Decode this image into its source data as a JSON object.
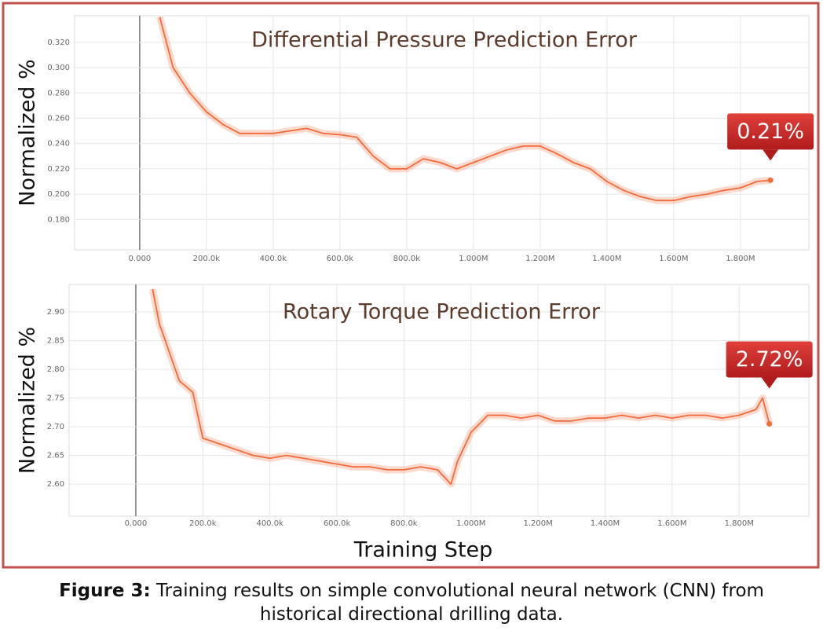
{
  "chart_data": [
    {
      "type": "line",
      "title": "Differential Pressure Prediction Error",
      "ylabel": "Normalized %",
      "x": [
        60000,
        80000,
        100000,
        150000,
        200000,
        250000,
        300000,
        350000,
        400000,
        450000,
        500000,
        550000,
        600000,
        650000,
        700000,
        750000,
        800000,
        850000,
        900000,
        950000,
        1000000,
        1050000,
        1100000,
        1150000,
        1200000,
        1250000,
        1300000,
        1350000,
        1400000,
        1450000,
        1500000,
        1550000,
        1600000,
        1650000,
        1700000,
        1750000,
        1800000,
        1850000,
        1890000
      ],
      "series": [
        {
          "name": "Differential Pressure",
          "color": "#f26b3a",
          "values": [
            0.34,
            0.32,
            0.3,
            0.28,
            0.265,
            0.255,
            0.248,
            0.248,
            0.248,
            0.25,
            0.252,
            0.248,
            0.247,
            0.245,
            0.23,
            0.22,
            0.22,
            0.228,
            0.225,
            0.22,
            0.225,
            0.23,
            0.235,
            0.238,
            0.238,
            0.232,
            0.225,
            0.22,
            0.21,
            0.203,
            0.198,
            0.195,
            0.195,
            0.198,
            0.2,
            0.203,
            0.205,
            0.21,
            0.211
          ]
        }
      ],
      "annotation": "0.21%",
      "xlim": [
        -195000,
        2005000
      ],
      "ylim": [
        0.156,
        0.341
      ],
      "xticks": [
        {
          "value": 0,
          "label": "0.000"
        },
        {
          "value": 200000,
          "label": "200.0k"
        },
        {
          "value": 400000,
          "label": "400.0k"
        },
        {
          "value": 600000,
          "label": "600.0k"
        },
        {
          "value": 800000,
          "label": "800.0k"
        },
        {
          "value": 1000000,
          "label": "1.000M"
        },
        {
          "value": 1200000,
          "label": "1.200M"
        },
        {
          "value": 1400000,
          "label": "1.400M"
        },
        {
          "value": 1600000,
          "label": "1.600M"
        },
        {
          "value": 1800000,
          "label": "1.800M"
        }
      ],
      "yticks": [
        {
          "value": 0.18,
          "label": "0.180"
        },
        {
          "value": 0.2,
          "label": "0.200"
        },
        {
          "value": 0.22,
          "label": "0.220"
        },
        {
          "value": 0.24,
          "label": "0.240"
        },
        {
          "value": 0.26,
          "label": "0.260"
        },
        {
          "value": 0.28,
          "label": "0.280"
        },
        {
          "value": 0.3,
          "label": "0.300"
        },
        {
          "value": 0.32,
          "label": "0.320"
        }
      ],
      "grid": true
    },
    {
      "type": "line",
      "title": "Rotary Torque  Prediction Error",
      "ylabel": "Normalized %",
      "xlabel": "Training Step",
      "x": [
        50000,
        70000,
        100000,
        130000,
        170000,
        200000,
        250000,
        300000,
        350000,
        400000,
        450000,
        500000,
        550000,
        600000,
        650000,
        700000,
        750000,
        800000,
        850000,
        900000,
        940000,
        960000,
        1000000,
        1050000,
        1100000,
        1150000,
        1200000,
        1250000,
        1300000,
        1350000,
        1400000,
        1450000,
        1500000,
        1550000,
        1600000,
        1650000,
        1700000,
        1750000,
        1800000,
        1850000,
        1870000,
        1890000
      ],
      "series": [
        {
          "name": "Rotary Torque",
          "color": "#f26b3a",
          "values": [
            2.94,
            2.88,
            2.83,
            2.78,
            2.76,
            2.68,
            2.67,
            2.66,
            2.65,
            2.645,
            2.65,
            2.645,
            2.64,
            2.635,
            2.63,
            2.63,
            2.625,
            2.625,
            2.63,
            2.625,
            2.6,
            2.64,
            2.69,
            2.72,
            2.72,
            2.715,
            2.72,
            2.71,
            2.71,
            2.715,
            2.715,
            2.72,
            2.715,
            2.72,
            2.715,
            2.72,
            2.72,
            2.715,
            2.72,
            2.73,
            2.75,
            2.705
          ]
        }
      ],
      "annotation": "2.72%",
      "xlim": [
        -199000,
        2008000
      ],
      "ylim": [
        2.544,
        2.948
      ],
      "xticks": [
        {
          "value": 0,
          "label": "0.000"
        },
        {
          "value": 200000,
          "label": "200.0k"
        },
        {
          "value": 400000,
          "label": "400.0k"
        },
        {
          "value": 600000,
          "label": "600.0k"
        },
        {
          "value": 800000,
          "label": "800.0k"
        },
        {
          "value": 1000000,
          "label": "1.000M"
        },
        {
          "value": 1200000,
          "label": "1.200M"
        },
        {
          "value": 1400000,
          "label": "1.400M"
        },
        {
          "value": 1600000,
          "label": "1.600M"
        },
        {
          "value": 1800000,
          "label": "1.800M"
        }
      ],
      "yticks": [
        {
          "value": 2.6,
          "label": "2.60"
        },
        {
          "value": 2.65,
          "label": "2.65"
        },
        {
          "value": 2.7,
          "label": "2.70"
        },
        {
          "value": 2.75,
          "label": "2.75"
        },
        {
          "value": 2.8,
          "label": "2.80"
        },
        {
          "value": 2.85,
          "label": "2.85"
        },
        {
          "value": 2.9,
          "label": "2.90"
        }
      ],
      "grid": true
    }
  ],
  "caption": {
    "label": "Figure 3:",
    "text": "Training results on simple convolutional neural network (CNN) from historical directional drilling data."
  }
}
